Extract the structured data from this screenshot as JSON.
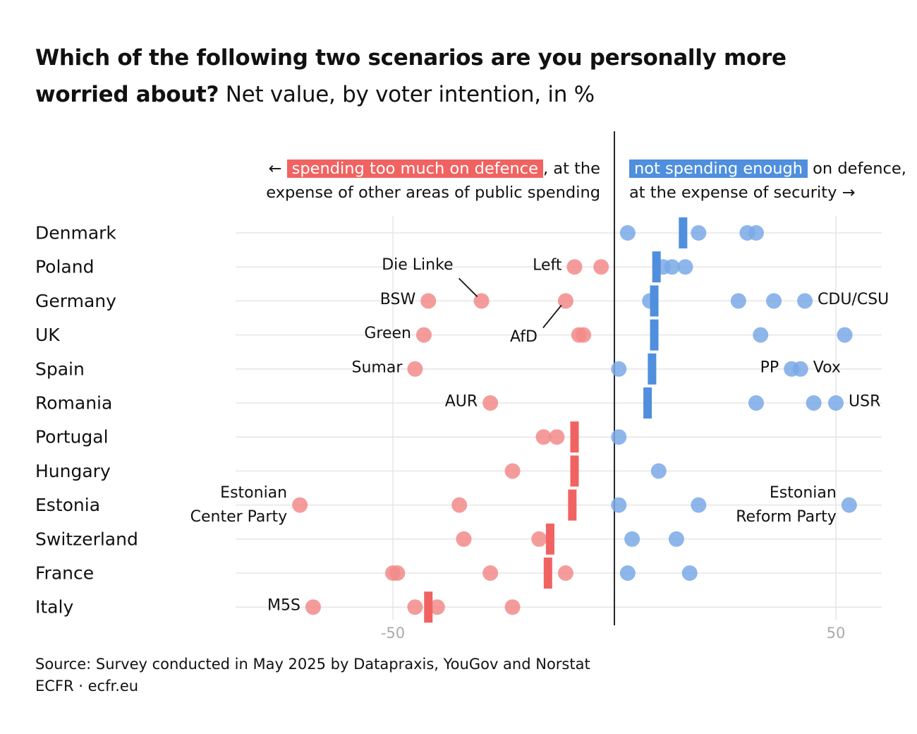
{
  "title": {
    "bold": "Which of the following two scenarios are you personally more worried about?",
    "light": "Net value, by voter intention, in %"
  },
  "header": {
    "left_arrow": "←",
    "left_highlight": "spending too much on defence",
    "left_rest1": ", at the",
    "left_line2": "expense of other areas of public spending",
    "right_highlight": "not spending enough",
    "right_rest1": " on defence,",
    "right_line2": "at the expense of security",
    "right_arrow": "→"
  },
  "colors": {
    "negative": "#f06361",
    "positive": "#4f8fdd",
    "negative_dot": "#f28b89",
    "positive_dot": "#7aa9e6",
    "grid": "#e5e5e5",
    "tick": "#aaaaaa"
  },
  "source": {
    "line1": "Source: Survey conducted in May 2025 by Datapraxis, YouGov and Norstat",
    "line2": "ECFR · ecfr.eu"
  },
  "chart_data": {
    "type": "dot-plot",
    "title": "Which of the following two scenarios are you personally more worried about? Net value, by voter intention, in %",
    "xlim": [
      -86,
      60
    ],
    "x_ticks": [
      -50,
      50
    ],
    "x_tick_labels": [
      "-50",
      "50"
    ],
    "zero_line": 0,
    "countries": [
      {
        "name": "Denmark",
        "average": 15.5,
        "parties": [
          {
            "value": 3
          },
          {
            "value": 19
          },
          {
            "value": 30
          },
          {
            "value": 32
          }
        ]
      },
      {
        "name": "Poland",
        "average": 9.5,
        "parties": [
          {
            "value": -9,
            "label": "Left",
            "label_side": "left"
          },
          {
            "value": -3
          },
          {
            "value": 11
          },
          {
            "value": 13
          },
          {
            "value": 16
          }
        ]
      },
      {
        "name": "Germany",
        "average": 9,
        "parties": [
          {
            "value": -42,
            "label": "BSW",
            "label_side": "left"
          },
          {
            "value": -30,
            "label": "Die Linke",
            "label_side": "leader-up"
          },
          {
            "value": -11,
            "label": "AfD",
            "label_side": "leader-down"
          },
          {
            "value": 8
          },
          {
            "value": 28
          },
          {
            "value": 36
          },
          {
            "value": 43,
            "label": "CDU/CSU",
            "label_side": "right"
          }
        ]
      },
      {
        "name": "UK",
        "average": 9,
        "parties": [
          {
            "value": -43,
            "label": "Green",
            "label_side": "left"
          },
          {
            "value": -8
          },
          {
            "value": -7
          },
          {
            "value": 33
          },
          {
            "value": 52
          }
        ]
      },
      {
        "name": "Spain",
        "average": 8.5,
        "parties": [
          {
            "value": -45,
            "label": "Sumar",
            "label_side": "left"
          },
          {
            "value": 1
          },
          {
            "value": 40,
            "label": "PP",
            "label_side": "left"
          },
          {
            "value": 42,
            "label": "Vox",
            "label_side": "right"
          }
        ]
      },
      {
        "name": "Romania",
        "average": 7.5,
        "parties": [
          {
            "value": -28,
            "label": "AUR",
            "label_side": "left"
          },
          {
            "value": 32
          },
          {
            "value": 45
          },
          {
            "value": 50,
            "label": "USR",
            "label_side": "right"
          }
        ]
      },
      {
        "name": "Portugal",
        "average": -9,
        "parties": [
          {
            "value": -16
          },
          {
            "value": -13
          },
          {
            "value": 1
          }
        ]
      },
      {
        "name": "Hungary",
        "average": -9,
        "parties": [
          {
            "value": -23
          },
          {
            "value": 10
          }
        ]
      },
      {
        "name": "Estonia",
        "average": -9.5,
        "parties": [
          {
            "value": -71,
            "label": "Estonian Center Party",
            "label_lines": [
              "Estonian",
              "Center Party"
            ],
            "label_side": "left"
          },
          {
            "value": -35
          },
          {
            "value": 1
          },
          {
            "value": 19
          },
          {
            "value": 53,
            "label": "Estonian Reform Party",
            "label_lines": [
              "Estonian",
              "Reform Party"
            ],
            "label_side": "left"
          }
        ]
      },
      {
        "name": "Switzerland",
        "average": -14.5,
        "parties": [
          {
            "value": -34
          },
          {
            "value": -17
          },
          {
            "value": 4
          },
          {
            "value": 14
          }
        ]
      },
      {
        "name": "France",
        "average": -15,
        "parties": [
          {
            "value": -50
          },
          {
            "value": -49
          },
          {
            "value": -28
          },
          {
            "value": -11
          },
          {
            "value": 3
          },
          {
            "value": 17
          }
        ]
      },
      {
        "name": "Italy",
        "average": -42,
        "parties": [
          {
            "value": -68,
            "label": "M5S",
            "label_side": "left"
          },
          {
            "value": -45
          },
          {
            "value": -40
          },
          {
            "value": -23
          }
        ]
      }
    ]
  }
}
